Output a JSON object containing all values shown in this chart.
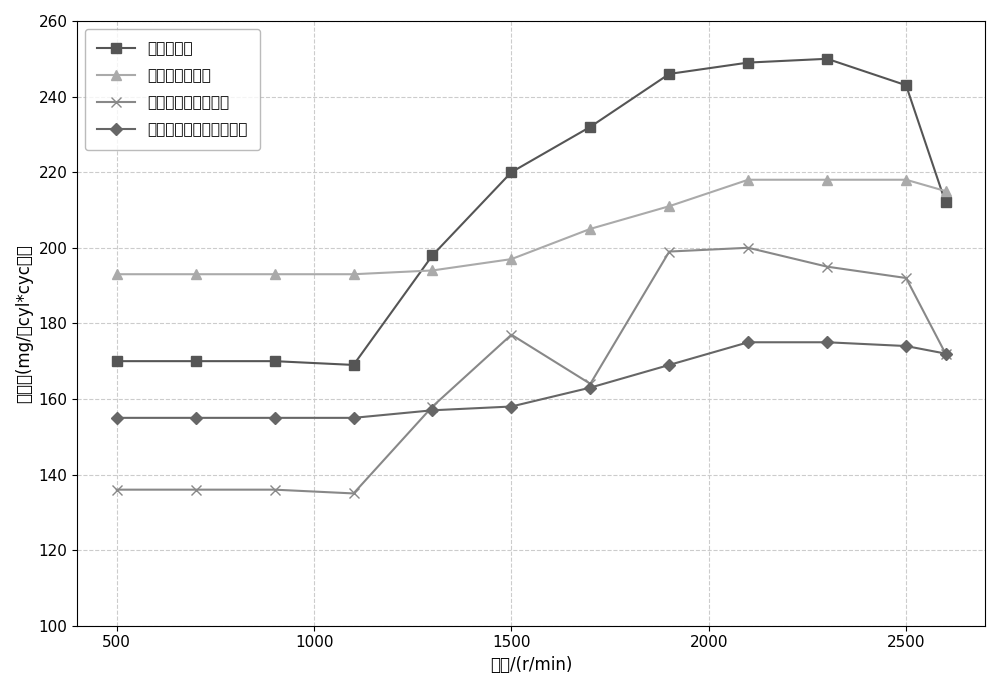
{
  "series": [
    {
      "label": "外特性油量",
      "color": "#555555",
      "marker": "s",
      "markersize": 7,
      "linewidth": 1.5,
      "x": [
        500,
        700,
        900,
        1100,
        1300,
        1500,
        1700,
        1900,
        2100,
        2300,
        2500,
        2600
      ],
      "y": [
        170,
        170,
        170,
        169,
        198,
        220,
        232,
        246,
        249,
        250,
        243,
        212
      ]
    },
    {
      "label": "极限空燃比油量",
      "color": "#aaaaaa",
      "marker": "^",
      "markersize": 7,
      "linewidth": 1.5,
      "x": [
        500,
        700,
        900,
        1100,
        1300,
        1500,
        1700,
        1900,
        2100,
        2300,
        2500,
        2600
      ],
      "y": [
        193,
        193,
        193,
        193,
        194,
        197,
        205,
        211,
        218,
        218,
        218,
        215
      ]
    },
    {
      "label": "修正后的外特性油量",
      "color": "#888888",
      "marker": "x",
      "markersize": 7,
      "linewidth": 1.5,
      "x": [
        500,
        700,
        900,
        1100,
        1300,
        1500,
        1700,
        1900,
        2100,
        2300,
        2500,
        2600
      ],
      "y": [
        136,
        136,
        136,
        135,
        158,
        177,
        164,
        199,
        200,
        195,
        192,
        172
      ]
    },
    {
      "label": "修正后的极限空燃比油量",
      "color": "#666666",
      "marker": "D",
      "markersize": 6,
      "linewidth": 1.5,
      "x": [
        500,
        700,
        900,
        1100,
        1300,
        1500,
        1700,
        1900,
        2100,
        2300,
        2500,
        2600
      ],
      "y": [
        155,
        155,
        155,
        155,
        157,
        158,
        163,
        169,
        175,
        175,
        174,
        172
      ]
    }
  ],
  "xlabel": "转速/(r/min)",
  "ylabel": "油量／(mg/（cyl*cyc））",
  "xlim": [
    400,
    2700
  ],
  "ylim": [
    100,
    260
  ],
  "xticks": [
    500,
    1000,
    1500,
    2000,
    2500
  ],
  "yticks": [
    100,
    120,
    140,
    160,
    180,
    200,
    220,
    240,
    260
  ],
  "grid_color": "#cccccc",
  "bg_color": "#ffffff",
  "legend_loc": "upper left",
  "fig_width": 10.0,
  "fig_height": 6.89
}
